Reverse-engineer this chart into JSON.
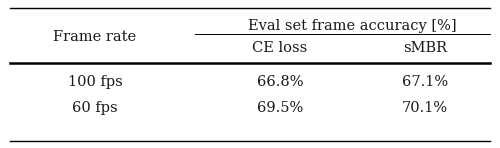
{
  "col1_header": "Frame rate",
  "col2_header": "Eval set frame accuracy [%]",
  "col2_sub1": "CE loss",
  "col2_sub2": "sMBR",
  "rows": [
    [
      "100 fps",
      "66.8%",
      "67.1%"
    ],
    [
      "60 fps",
      "69.5%",
      "70.1%"
    ]
  ],
  "bg_color": "#ffffff",
  "text_color": "#1a1a1a",
  "line_color": "#000000",
  "font_size": 10.5
}
